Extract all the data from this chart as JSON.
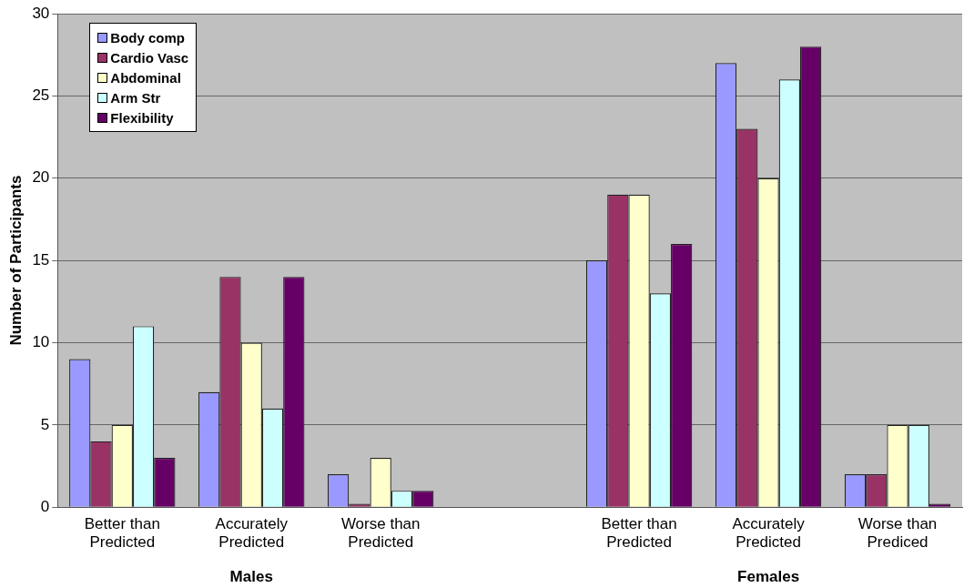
{
  "chart_data": {
    "type": "bar",
    "ylabel": "Number of Participants",
    "categories": [
      "Better than Predicted",
      "Accurately Predicted",
      "Worse than Predicted",
      null,
      "Better than Predicted",
      "Accurately Predicted",
      "Worse than Prediced"
    ],
    "series": [
      {
        "name": "Body comp",
        "color": "#9999ff",
        "values": [
          9,
          7,
          2,
          null,
          15,
          27,
          2
        ]
      },
      {
        "name": "Cardio Vasc",
        "color": "#993366",
        "values": [
          4,
          14,
          0.2,
          null,
          19,
          23,
          2
        ]
      },
      {
        "name": "Abdominal",
        "color": "#ffffcc",
        "values": [
          5,
          10,
          3,
          null,
          19,
          20,
          5
        ]
      },
      {
        "name": "Arm Str",
        "color": "#ccffff",
        "values": [
          11,
          6,
          1,
          null,
          13,
          26,
          5
        ]
      },
      {
        "name": "Flexibility",
        "color": "#660066",
        "values": [
          3,
          14,
          1,
          null,
          16,
          28,
          0.2
        ]
      }
    ],
    "annotations": [
      "Males",
      "Females"
    ],
    "ylim": [
      0,
      30
    ],
    "yticks": [
      0,
      5,
      10,
      15,
      20,
      25,
      30
    ],
    "grid": "y",
    "legend": "top left"
  }
}
